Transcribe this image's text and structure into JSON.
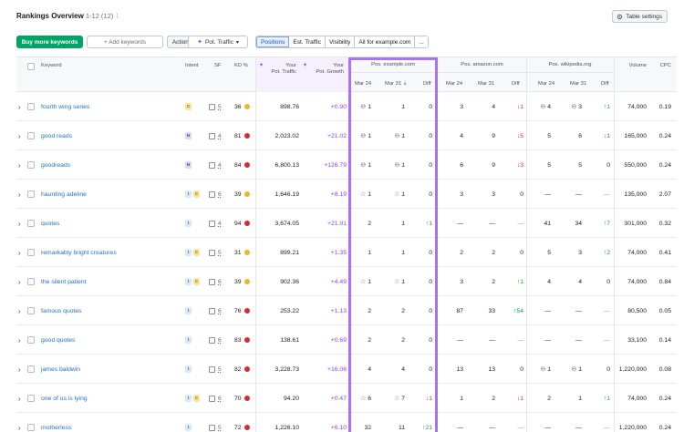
{
  "header": {
    "title": "Rankings Overview",
    "range": "1-12 (12)",
    "separator": "⁝",
    "table_settings": "Table settings",
    "table_settings_icon": "gear-icon"
  },
  "toolbar": {
    "buy_keywords": "Buy more keywords",
    "add_keywords": "+ Add keywords",
    "actions": "Actions",
    "pot_traffic": "Pot. Traffic",
    "views": [
      "Positions",
      "Est. Traffic",
      "Visibility",
      "All for example.com",
      "..."
    ]
  },
  "columns": {
    "keyword": "Keyword",
    "intent": "Intent",
    "sf": "SF",
    "kd": "KD %",
    "pot_traffic_1": "Your",
    "pot_traffic_2": "Pot. Traffic",
    "pot_growth_1": "Your",
    "pot_growth_2": "Pot. Growth",
    "group_example": "Pos. example.com",
    "group_amazon": "Pos. amazon.com",
    "group_wikipedia": "Pos. wikipedia.org",
    "mar24": "Mar 24",
    "mar31": "Mar 31",
    "diff": "Diff",
    "volume": "Volume",
    "cpc": "CPC"
  },
  "colors": {
    "accent": "#00a464",
    "highlight": "#a872f0",
    "link": "#1f6fd1",
    "growth": "#8a3ffc",
    "kd_orange": "#f5b325",
    "kd_red": "#d92b2b"
  },
  "rows": [
    {
      "keyword": "fourth wing series",
      "intents": [
        "C"
      ],
      "sf": "5",
      "kd": "36",
      "kd_color": "#f5b325",
      "traffic": "898.76",
      "growth": "+0.90",
      "ex24": "1",
      "ex24_icon": "link",
      "ex31": "1",
      "ex31_icon": "",
      "exd": "0",
      "exd_dir": "",
      "am24": "3",
      "am31": "4",
      "amd": "↓1",
      "amd_dir": "down",
      "wk24": "4",
      "wk24_icon": "link",
      "wk31": "3",
      "wk31_icon": "link",
      "wkd": "↑1",
      "wkd_dir": "up",
      "volume": "74,000",
      "cpc": "0.19"
    },
    {
      "keyword": "good reads",
      "intents": [
        "N"
      ],
      "sf": "4",
      "kd": "81",
      "kd_color": "#d92b2b",
      "traffic": "2,023.02",
      "growth": "+21.02",
      "ex24": "1",
      "ex24_icon": "link",
      "ex31": "1",
      "ex31_icon": "link",
      "exd": "0",
      "exd_dir": "",
      "am24": "4",
      "am31": "9",
      "amd": "↓5",
      "amd_dir": "down",
      "wk24": "5",
      "wk24_icon": "",
      "wk31": "6",
      "wk31_icon": "",
      "wkd": "↓1",
      "wkd_dir": "down",
      "volume": "165,000",
      "cpc": "0.24"
    },
    {
      "keyword": "goodreads",
      "intents": [
        "N"
      ],
      "sf": "4",
      "kd": "84",
      "kd_color": "#d92b2b",
      "traffic": "6,800.13",
      "growth": "+126.79",
      "ex24": "1",
      "ex24_icon": "link",
      "ex31": "1",
      "ex31_icon": "link",
      "exd": "0",
      "exd_dir": "",
      "am24": "6",
      "am31": "9",
      "amd": "↓3",
      "amd_dir": "down",
      "wk24": "5",
      "wk24_icon": "",
      "wk31": "5",
      "wk31_icon": "",
      "wkd": "0",
      "wkd_dir": "",
      "volume": "550,000",
      "cpc": "0.24"
    },
    {
      "keyword": "haunting adeline",
      "intents": [
        "I",
        "C"
      ],
      "sf": "6",
      "kd": "39",
      "kd_color": "#f5b325",
      "traffic": "1,646.19",
      "growth": "+8.19",
      "ex24": "1",
      "ex24_icon": "star",
      "ex31": "1",
      "ex31_icon": "star",
      "exd": "0",
      "exd_dir": "",
      "am24": "3",
      "am31": "3",
      "amd": "0",
      "amd_dir": "",
      "wk24": "—",
      "wk24_icon": "",
      "wk31": "—",
      "wk31_icon": "",
      "wkd": "—",
      "wkd_dir": "muted",
      "volume": "135,000",
      "cpc": "2.07"
    },
    {
      "keyword": "quotes",
      "intents": [
        "I"
      ],
      "sf": "4",
      "kd": "94",
      "kd_color": "#d92b2b",
      "traffic": "3,674.05",
      "growth": "+21.91",
      "ex24": "2",
      "ex24_icon": "",
      "ex31": "1",
      "ex31_icon": "",
      "exd": "↑1",
      "exd_dir": "up",
      "am24": "—",
      "am31": "—",
      "amd": "—",
      "amd_dir": "muted",
      "wk24": "41",
      "wk24_icon": "",
      "wk31": "34",
      "wk31_icon": "",
      "wkd": "↑7",
      "wkd_dir": "up",
      "volume": "301,000",
      "cpc": "0.32"
    },
    {
      "keyword": "remarkably bright creatures",
      "intents": [
        "I",
        "C"
      ],
      "sf": "5",
      "kd": "31",
      "kd_color": "#f5b325",
      "traffic": "899.21",
      "growth": "+1.35",
      "ex24": "1",
      "ex24_icon": "",
      "ex31": "1",
      "ex31_icon": "",
      "exd": "0",
      "exd_dir": "",
      "am24": "2",
      "am31": "2",
      "amd": "0",
      "amd_dir": "",
      "wk24": "5",
      "wk24_icon": "",
      "wk31": "3",
      "wk31_icon": "",
      "wkd": "↑2",
      "wkd_dir": "up",
      "volume": "74,000",
      "cpc": "0.41"
    },
    {
      "keyword": "the silent patient",
      "intents": [
        "I",
        "C"
      ],
      "sf": "6",
      "kd": "39",
      "kd_color": "#f5b325",
      "traffic": "902.36",
      "growth": "+4.49",
      "ex24": "1",
      "ex24_icon": "star",
      "ex31": "1",
      "ex31_icon": "star",
      "exd": "0",
      "exd_dir": "",
      "am24": "3",
      "am31": "2",
      "amd": "↑1",
      "amd_dir": "up",
      "wk24": "4",
      "wk24_icon": "",
      "wk31": "4",
      "wk31_icon": "",
      "wkd": "0",
      "wkd_dir": "",
      "volume": "74,000",
      "cpc": "0.84"
    },
    {
      "keyword": "famous quotes",
      "intents": [
        "I"
      ],
      "sf": "6",
      "kd": "76",
      "kd_color": "#d92b2b",
      "traffic": "253.22",
      "growth": "+1.13",
      "ex24": "2",
      "ex24_icon": "",
      "ex31": "2",
      "ex31_icon": "",
      "exd": "0",
      "exd_dir": "",
      "am24": "87",
      "am31": "33",
      "amd": "↑54",
      "amd_dir": "up",
      "wk24": "—",
      "wk24_icon": "",
      "wk31": "—",
      "wk31_icon": "",
      "wkd": "—",
      "wkd_dir": "muted",
      "volume": "80,500",
      "cpc": "0.05"
    },
    {
      "keyword": "good quotes",
      "intents": [
        "I"
      ],
      "sf": "6",
      "kd": "83",
      "kd_color": "#d92b2b",
      "traffic": "138.61",
      "growth": "+0.69",
      "ex24": "2",
      "ex24_icon": "",
      "ex31": "2",
      "ex31_icon": "",
      "exd": "0",
      "exd_dir": "",
      "am24": "—",
      "am31": "—",
      "amd": "—",
      "amd_dir": "muted",
      "wk24": "—",
      "wk24_icon": "",
      "wk31": "—",
      "wk31_icon": "",
      "wkd": "—",
      "wkd_dir": "muted",
      "volume": "33,100",
      "cpc": "0.14"
    },
    {
      "keyword": "james baldwin",
      "intents": [
        "I"
      ],
      "sf": "5",
      "kd": "82",
      "kd_color": "#d92b2b",
      "traffic": "3,228.73",
      "growth": "+16.06",
      "ex24": "4",
      "ex24_icon": "",
      "ex31": "4",
      "ex31_icon": "",
      "exd": "0",
      "exd_dir": "",
      "am24": "13",
      "am31": "13",
      "amd": "0",
      "amd_dir": "",
      "wk24": "1",
      "wk24_icon": "link",
      "wk31": "1",
      "wk31_icon": "link",
      "wkd": "0",
      "wkd_dir": "",
      "volume": "1,220,000",
      "cpc": "0.08"
    },
    {
      "keyword": "one of us is lying",
      "intents": [
        "I",
        "C"
      ],
      "sf": "6",
      "kd": "70",
      "kd_color": "#d92b2b",
      "traffic": "94.20",
      "growth": "+0.47",
      "ex24": "6",
      "ex24_icon": "star",
      "ex31": "7",
      "ex31_icon": "star",
      "exd": "↓1",
      "exd_dir": "down",
      "am24": "1",
      "am31": "2",
      "amd": "↓1",
      "amd_dir": "down",
      "wk24": "2",
      "wk24_icon": "",
      "wk31": "1",
      "wk31_icon": "",
      "wkd": "↑1",
      "wkd_dir": "up",
      "volume": "74,000",
      "cpc": "0.24"
    },
    {
      "keyword": "motherless",
      "intents": [
        "I"
      ],
      "sf": "5",
      "kd": "72",
      "kd_color": "#d92b2b",
      "traffic": "1,226.10",
      "growth": "+6.10",
      "ex24": "32",
      "ex24_icon": "",
      "ex31": "11",
      "ex31_icon": "",
      "exd": "↑21",
      "exd_dir": "up",
      "am24": "—",
      "am31": "—",
      "amd": "—",
      "amd_dir": "muted",
      "wk24": "—",
      "wk24_icon": "",
      "wk31": "—",
      "wk31_icon": "",
      "wkd": "—",
      "wkd_dir": "muted",
      "volume": "1,220,000",
      "cpc": "0.24"
    }
  ]
}
